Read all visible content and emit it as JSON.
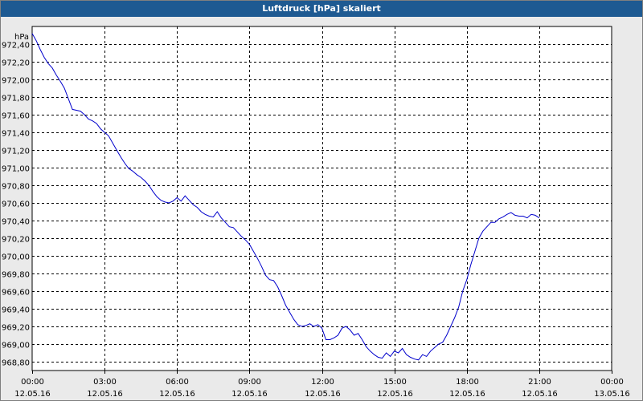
{
  "window": {
    "title": "Luftdruck [hPa] skaliert"
  },
  "colors": {
    "title_bar": "#1e5a92",
    "series": "#0000cc",
    "grid": "#000000",
    "background": "#ffffff"
  },
  "chart_data": {
    "type": "line",
    "title": "Luftdruck [hPa] skaliert",
    "ylabel": "hPa",
    "xlabel": "",
    "grid": true,
    "ylim": [
      968.7,
      972.6
    ],
    "yticks": [
      "972,40",
      "972,20",
      "972,00",
      "971,80",
      "971,60",
      "971,40",
      "971,20",
      "971,00",
      "970,80",
      "970,60",
      "970,40",
      "970,20",
      "970,00",
      "969,80",
      "969,60",
      "969,40",
      "969,20",
      "969,00",
      "968,80"
    ],
    "yticks_values": [
      972.4,
      972.2,
      972.0,
      971.8,
      971.6,
      971.4,
      971.2,
      971.0,
      970.8,
      970.6,
      970.4,
      970.2,
      970.0,
      969.8,
      969.6,
      969.4,
      969.2,
      969.0,
      968.8
    ],
    "xticks": [
      {
        "time": "00:00",
        "date": "12.05.16"
      },
      {
        "time": "03:00",
        "date": "12.05.16"
      },
      {
        "time": "06:00",
        "date": "12.05.16"
      },
      {
        "time": "09:00",
        "date": "12.05.16"
      },
      {
        "time": "12:00",
        "date": "12.05.16"
      },
      {
        "time": "15:00",
        "date": "12.05.16"
      },
      {
        "time": "18:00",
        "date": "12.05.16"
      },
      {
        "time": "21:00",
        "date": "12.05.16"
      },
      {
        "time": "00:00",
        "date": "13.05.16"
      }
    ],
    "series": [
      {
        "points": [
          [
            "12.05.16 00:00",
            972.52
          ],
          [
            "12.05.16 00:10",
            972.44
          ],
          [
            "12.05.16 00:20",
            972.34
          ],
          [
            "12.05.16 00:30",
            972.25
          ],
          [
            "12.05.16 00:40",
            972.18
          ],
          [
            "12.05.16 00:50",
            972.13
          ],
          [
            "12.05.16 01:00",
            972.05
          ],
          [
            "12.05.16 01:10",
            971.98
          ],
          [
            "12.05.16 01:20",
            971.9
          ],
          [
            "12.05.16 01:30",
            971.78
          ],
          [
            "12.05.16 01:40",
            971.66
          ],
          [
            "12.05.16 01:50",
            971.65
          ],
          [
            "12.05.16 02:00",
            971.64
          ],
          [
            "12.05.16 02:10",
            971.6
          ],
          [
            "12.05.16 02:20",
            971.55
          ],
          [
            "12.05.16 02:30",
            971.53
          ],
          [
            "12.05.16 02:40",
            971.5
          ],
          [
            "12.05.16 02:50",
            971.44
          ],
          [
            "12.05.16 03:00",
            971.4
          ],
          [
            "12.05.16 03:10",
            971.36
          ],
          [
            "12.05.16 03:20",
            971.28
          ],
          [
            "12.05.16 03:30",
            971.2
          ],
          [
            "12.05.16 03:40",
            971.12
          ],
          [
            "12.05.16 03:50",
            971.05
          ],
          [
            "12.05.16 04:00",
            970.99
          ],
          [
            "12.05.16 04:10",
            970.96
          ],
          [
            "12.05.16 04:20",
            970.92
          ],
          [
            "12.05.16 04:30",
            970.89
          ],
          [
            "12.05.16 04:40",
            970.85
          ],
          [
            "12.05.16 04:50",
            970.8
          ],
          [
            "12.05.16 05:00",
            970.73
          ],
          [
            "12.05.16 05:10",
            970.67
          ],
          [
            "12.05.16 05:20",
            970.63
          ],
          [
            "12.05.16 05:30",
            970.61
          ],
          [
            "12.05.16 05:40",
            970.6
          ],
          [
            "12.05.16 05:50",
            970.62
          ],
          [
            "12.05.16 06:00",
            970.66
          ],
          [
            "12.05.16 06:10",
            970.62
          ],
          [
            "12.05.16 06:20",
            970.68
          ],
          [
            "12.05.16 06:30",
            970.63
          ],
          [
            "12.05.16 06:40",
            970.58
          ],
          [
            "12.05.16 06:50",
            970.55
          ],
          [
            "12.05.16 07:00",
            970.5
          ],
          [
            "12.05.16 07:10",
            970.47
          ],
          [
            "12.05.16 07:20",
            970.45
          ],
          [
            "12.05.16 07:30",
            970.44
          ],
          [
            "12.05.16 07:40",
            970.5
          ],
          [
            "12.05.16 07:50",
            970.43
          ],
          [
            "12.05.16 08:00",
            970.38
          ],
          [
            "12.05.16 08:10",
            970.33
          ],
          [
            "12.05.16 08:20",
            970.32
          ],
          [
            "12.05.16 08:30",
            970.27
          ],
          [
            "12.05.16 08:40",
            970.22
          ],
          [
            "12.05.16 08:50",
            970.18
          ],
          [
            "12.05.16 09:00",
            970.13
          ],
          [
            "12.05.16 09:10",
            970.05
          ],
          [
            "12.05.16 09:20",
            969.97
          ],
          [
            "12.05.16 09:30",
            969.88
          ],
          [
            "12.05.16 09:40",
            969.78
          ],
          [
            "12.05.16 09:50",
            969.73
          ],
          [
            "12.05.16 10:00",
            969.72
          ],
          [
            "12.05.16 10:10",
            969.65
          ],
          [
            "12.05.16 10:20",
            969.55
          ],
          [
            "12.05.16 10:30",
            969.44
          ],
          [
            "12.05.16 10:40",
            969.36
          ],
          [
            "12.05.16 10:50",
            969.28
          ],
          [
            "12.05.16 11:00",
            969.22
          ],
          [
            "12.05.16 11:10",
            969.2
          ],
          [
            "12.05.16 11:20",
            969.21
          ],
          [
            "12.05.16 11:30",
            969.23
          ],
          [
            "12.05.16 11:40",
            969.2
          ],
          [
            "12.05.16 11:50",
            969.22
          ],
          [
            "12.05.16 12:00",
            969.18
          ],
          [
            "12.05.16 12:10",
            969.05
          ],
          [
            "12.05.16 12:20",
            969.05
          ],
          [
            "12.05.16 12:30",
            969.07
          ],
          [
            "12.05.16 12:40",
            969.1
          ],
          [
            "12.05.16 12:50",
            969.18
          ],
          [
            "12.05.16 13:00",
            969.2
          ],
          [
            "12.05.16 13:10",
            969.16
          ],
          [
            "12.05.16 13:20",
            969.1
          ],
          [
            "12.05.16 13:30",
            969.12
          ],
          [
            "12.05.16 13:40",
            969.05
          ],
          [
            "12.05.16 13:50",
            968.97
          ],
          [
            "12.05.16 14:00",
            968.92
          ],
          [
            "12.05.16 14:10",
            968.88
          ],
          [
            "12.05.16 14:20",
            968.85
          ],
          [
            "12.05.16 14:30",
            968.84
          ],
          [
            "12.05.16 14:40",
            968.9
          ],
          [
            "12.05.16 14:50",
            968.86
          ],
          [
            "12.05.16 15:00",
            968.92
          ],
          [
            "12.05.16 15:10",
            968.9
          ],
          [
            "12.05.16 15:20",
            968.95
          ],
          [
            "12.05.16 15:30",
            968.88
          ],
          [
            "12.05.16 15:40",
            968.85
          ],
          [
            "12.05.16 15:50",
            968.83
          ],
          [
            "12.05.16 16:00",
            968.82
          ],
          [
            "12.05.16 16:10",
            968.88
          ],
          [
            "12.05.16 16:20",
            968.86
          ],
          [
            "12.05.16 16:30",
            968.92
          ],
          [
            "12.05.16 16:40",
            968.96
          ],
          [
            "12.05.16 16:50",
            969.0
          ],
          [
            "12.05.16 17:00",
            969.02
          ],
          [
            "12.05.16 17:10",
            969.1
          ],
          [
            "12.05.16 17:20",
            969.2
          ],
          [
            "12.05.16 17:30",
            969.3
          ],
          [
            "12.05.16 17:40",
            969.42
          ],
          [
            "12.05.16 17:50",
            969.6
          ],
          [
            "12.05.16 18:00",
            969.73
          ],
          [
            "12.05.16 18:10",
            969.9
          ],
          [
            "12.05.16 18:20",
            970.05
          ],
          [
            "12.05.16 18:30",
            970.2
          ],
          [
            "12.05.16 18:40",
            970.28
          ],
          [
            "12.05.16 18:50",
            970.33
          ],
          [
            "12.05.16 19:00",
            970.38
          ],
          [
            "12.05.16 19:10",
            970.38
          ],
          [
            "12.05.16 19:20",
            970.42
          ],
          [
            "12.05.16 19:30",
            970.44
          ],
          [
            "12.05.16 19:40",
            970.47
          ],
          [
            "12.05.16 19:50",
            970.49
          ],
          [
            "12.05.16 20:00",
            970.46
          ],
          [
            "12.05.16 20:10",
            970.45
          ],
          [
            "12.05.16 20:20",
            970.45
          ],
          [
            "12.05.16 20:30",
            970.43
          ],
          [
            "12.05.16 20:40",
            970.47
          ],
          [
            "12.05.16 20:50",
            970.46
          ],
          [
            "12.05.16 21:00",
            970.43
          ]
        ]
      }
    ]
  }
}
